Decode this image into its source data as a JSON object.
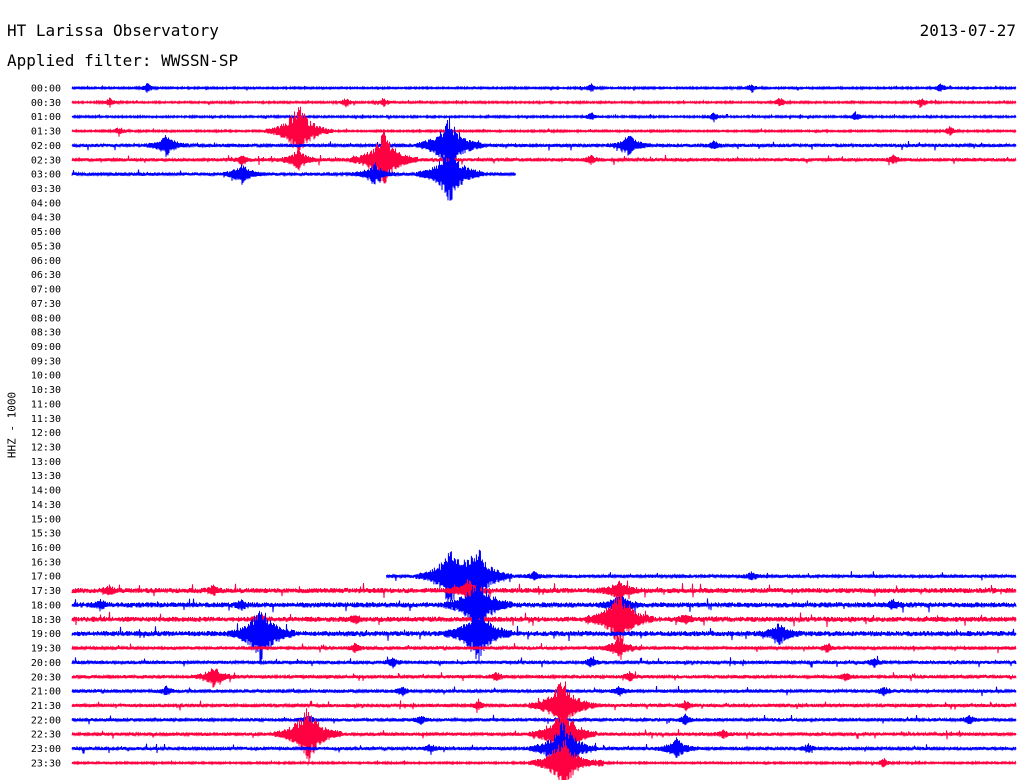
{
  "header": {
    "title": "HT Larissa Observatory",
    "date": "2013-07-27",
    "filter_label": "Applied filter: WWSSN-SP"
  },
  "colors": {
    "primary_trace": "#0000ff",
    "secondary_trace": "#ff0040"
  },
  "chart_data": {
    "type": "line",
    "title": "HT Larissa Observatory",
    "ylabel": "HHZ - 1000",
    "xlabel": "",
    "grid": false,
    "legend": "none",
    "row_labels": [
      "00:00",
      "00:30",
      "01:00",
      "01:30",
      "02:00",
      "02:30",
      "03:00",
      "03:30",
      "04:00",
      "04:30",
      "05:00",
      "05:30",
      "06:00",
      "06:30",
      "07:00",
      "07:30",
      "08:00",
      "08:30",
      "09:00",
      "09:30",
      "10:00",
      "10:30",
      "11:00",
      "11:30",
      "12:00",
      "12:30",
      "13:00",
      "13:30",
      "14:00",
      "14:30",
      "15:00",
      "15:30",
      "16:00",
      "16:30",
      "17:00",
      "17:30",
      "18:00",
      "18:30",
      "19:00",
      "19:30",
      "20:00",
      "20:30",
      "21:00",
      "21:30",
      "22:00",
      "22:30",
      "23:00",
      "23:30"
    ],
    "traces": [
      {
        "row": "00:00",
        "color": "blue",
        "coverage": [
          0,
          1
        ],
        "noise": "low",
        "events": [
          [
            0.08,
            "small"
          ],
          [
            0.55,
            "small"
          ],
          [
            0.72,
            "small"
          ],
          [
            0.92,
            "small"
          ]
        ]
      },
      {
        "row": "00:30",
        "color": "red",
        "coverage": [
          0,
          1
        ],
        "noise": "low",
        "events": [
          [
            0.04,
            "small"
          ],
          [
            0.29,
            "small"
          ],
          [
            0.33,
            "small"
          ],
          [
            0.75,
            "small"
          ],
          [
            0.9,
            "small"
          ]
        ]
      },
      {
        "row": "01:00",
        "color": "blue",
        "coverage": [
          0,
          1
        ],
        "noise": "low",
        "events": [
          [
            0.55,
            "small"
          ],
          [
            0.68,
            "small"
          ],
          [
            0.83,
            "small"
          ]
        ]
      },
      {
        "row": "01:30",
        "color": "red",
        "coverage": [
          0,
          1
        ],
        "noise": "low",
        "events": [
          [
            0.05,
            "small"
          ],
          [
            0.24,
            "large"
          ],
          [
            0.93,
            "small"
          ]
        ]
      },
      {
        "row": "02:00",
        "color": "blue",
        "coverage": [
          0,
          1
        ],
        "noise": "medium",
        "events": [
          [
            0.1,
            "medium"
          ],
          [
            0.4,
            "large"
          ],
          [
            0.59,
            "medium"
          ],
          [
            0.68,
            "small"
          ]
        ]
      },
      {
        "row": "02:30",
        "color": "red",
        "coverage": [
          0,
          1
        ],
        "noise": "medium",
        "events": [
          [
            0.18,
            "small"
          ],
          [
            0.24,
            "medium"
          ],
          [
            0.33,
            "large"
          ],
          [
            0.55,
            "small"
          ],
          [
            0.87,
            "small"
          ]
        ]
      },
      {
        "row": "03:00",
        "color": "blue",
        "coverage": [
          0,
          0.47
        ],
        "noise": "medium",
        "events": [
          [
            0.18,
            "medium"
          ],
          [
            0.32,
            "medium"
          ],
          [
            0.4,
            "large"
          ]
        ]
      },
      {
        "row": "17:00",
        "color": "blue",
        "coverage": [
          0.333,
          1
        ],
        "noise": "medium",
        "events": [
          [
            0.4,
            "large"
          ],
          [
            0.43,
            "large"
          ],
          [
            0.49,
            "small"
          ],
          [
            0.72,
            "small"
          ]
        ]
      },
      {
        "row": "17:30",
        "color": "red",
        "coverage": [
          0,
          1
        ],
        "noise": "high",
        "events": [
          [
            0.04,
            "small"
          ],
          [
            0.15,
            "small"
          ],
          [
            0.42,
            "medium"
          ],
          [
            0.58,
            "medium"
          ]
        ]
      },
      {
        "row": "18:00",
        "color": "blue",
        "coverage": [
          0,
          1
        ],
        "noise": "high",
        "events": [
          [
            0.03,
            "small"
          ],
          [
            0.18,
            "small"
          ],
          [
            0.43,
            "large"
          ],
          [
            0.58,
            "medium"
          ],
          [
            0.87,
            "small"
          ]
        ]
      },
      {
        "row": "18:30",
        "color": "red",
        "coverage": [
          0,
          1
        ],
        "noise": "high",
        "events": [
          [
            0.2,
            "small"
          ],
          [
            0.3,
            "small"
          ],
          [
            0.58,
            "large"
          ],
          [
            0.65,
            "small"
          ]
        ]
      },
      {
        "row": "19:00",
        "color": "blue",
        "coverage": [
          0,
          1
        ],
        "noise": "high",
        "events": [
          [
            0.2,
            "large"
          ],
          [
            0.43,
            "large"
          ],
          [
            0.75,
            "medium"
          ]
        ]
      },
      {
        "row": "19:30",
        "color": "red",
        "coverage": [
          0,
          1
        ],
        "noise": "medium",
        "events": [
          [
            0.3,
            "small"
          ],
          [
            0.58,
            "medium"
          ],
          [
            0.8,
            "small"
          ]
        ]
      },
      {
        "row": "20:00",
        "color": "blue",
        "coverage": [
          0,
          1
        ],
        "noise": "medium",
        "events": [
          [
            0.34,
            "small"
          ],
          [
            0.55,
            "small"
          ],
          [
            0.85,
            "small"
          ]
        ]
      },
      {
        "row": "20:30",
        "color": "red",
        "coverage": [
          0,
          1
        ],
        "noise": "medium",
        "events": [
          [
            0.15,
            "medium"
          ],
          [
            0.45,
            "small"
          ],
          [
            0.59,
            "small"
          ],
          [
            0.82,
            "small"
          ]
        ]
      },
      {
        "row": "21:00",
        "color": "blue",
        "coverage": [
          0,
          1
        ],
        "noise": "medium",
        "events": [
          [
            0.1,
            "small"
          ],
          [
            0.35,
            "small"
          ],
          [
            0.58,
            "small"
          ],
          [
            0.86,
            "small"
          ]
        ]
      },
      {
        "row": "21:30",
        "color": "red",
        "coverage": [
          0,
          1
        ],
        "noise": "medium",
        "events": [
          [
            0.43,
            "small"
          ],
          [
            0.52,
            "large"
          ],
          [
            0.65,
            "small"
          ]
        ]
      },
      {
        "row": "22:00",
        "color": "blue",
        "coverage": [
          0,
          1
        ],
        "noise": "medium",
        "events": [
          [
            0.25,
            "small"
          ],
          [
            0.37,
            "small"
          ],
          [
            0.65,
            "small"
          ],
          [
            0.95,
            "small"
          ]
        ]
      },
      {
        "row": "22:30",
        "color": "red",
        "coverage": [
          0,
          1
        ],
        "noise": "medium",
        "events": [
          [
            0.25,
            "large"
          ],
          [
            0.52,
            "large"
          ],
          [
            0.69,
            "small"
          ]
        ]
      },
      {
        "row": "23:00",
        "color": "blue",
        "coverage": [
          0,
          1
        ],
        "noise": "medium",
        "events": [
          [
            0.38,
            "small"
          ],
          [
            0.52,
            "large"
          ],
          [
            0.64,
            "medium"
          ],
          [
            0.78,
            "small"
          ]
        ]
      },
      {
        "row": "23:30",
        "color": "red",
        "coverage": [
          0,
          1
        ],
        "noise": "low",
        "events": [
          [
            0.52,
            "large"
          ],
          [
            0.56,
            "small"
          ],
          [
            0.86,
            "small"
          ]
        ]
      }
    ]
  }
}
